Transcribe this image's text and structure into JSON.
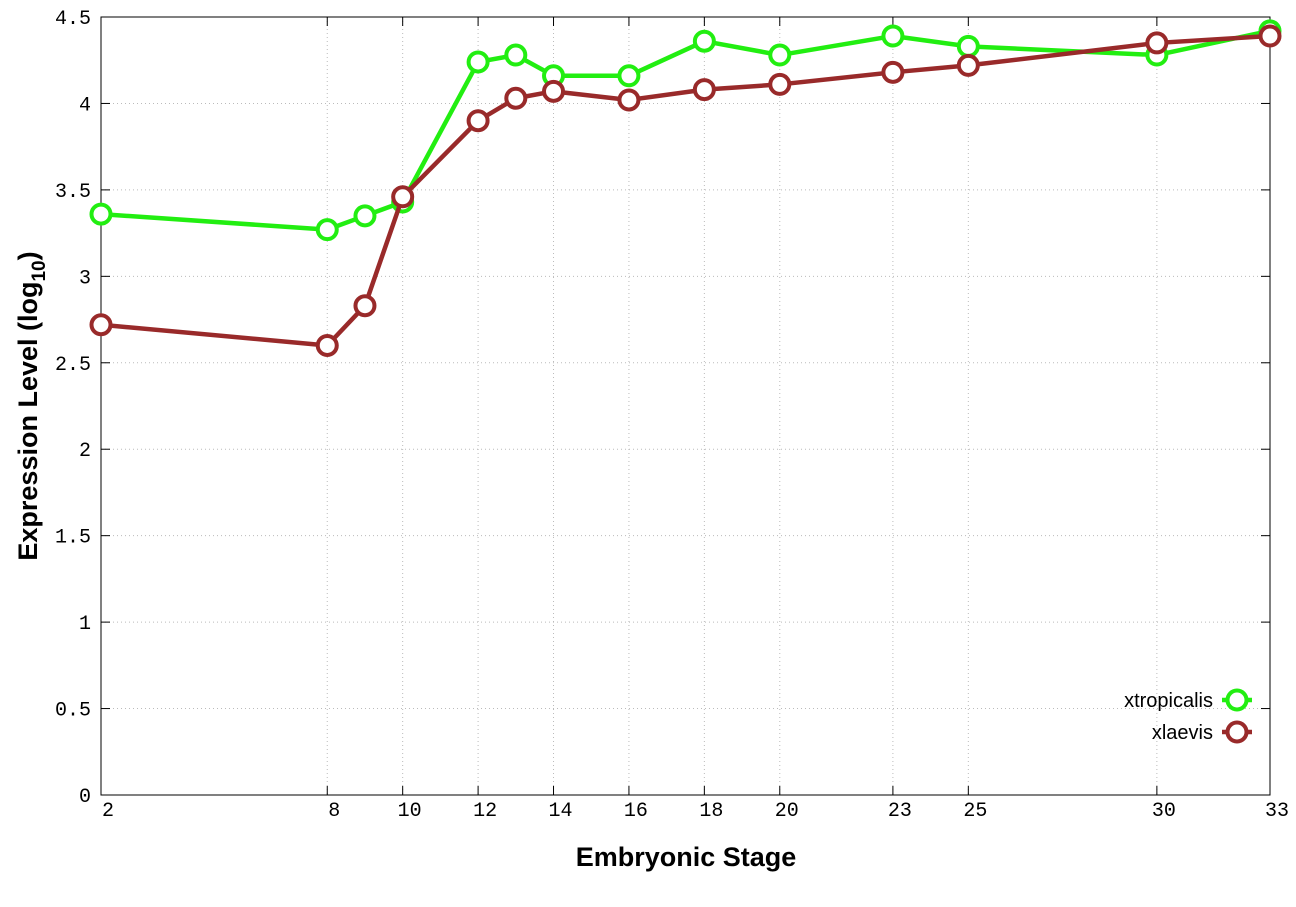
{
  "chart_data": {
    "type": "line",
    "xlabel": "Embryonic Stage",
    "ylabel": [
      "Expression Level (log",
      "10",
      ")"
    ],
    "x": [
      2,
      8,
      9,
      10,
      12,
      13,
      14,
      16,
      18,
      20,
      23,
      25,
      30,
      33
    ],
    "series": [
      {
        "name": "xtropicalis",
        "color": "#22ee11",
        "values": [
          3.36,
          3.27,
          3.35,
          3.43,
          4.24,
          4.28,
          4.16,
          4.16,
          4.36,
          4.28,
          4.39,
          4.33,
          4.28,
          4.42
        ]
      },
      {
        "name": "xlaevis",
        "color": "#992a2a",
        "values": [
          2.72,
          2.6,
          2.83,
          3.46,
          3.9,
          4.03,
          4.07,
          4.02,
          4.08,
          4.11,
          4.18,
          4.22,
          4.35,
          4.39
        ]
      }
    ],
    "xlim": [
      2,
      33
    ],
    "xticks": [
      2,
      8,
      10,
      12,
      14,
      16,
      18,
      20,
      23,
      25,
      30,
      33
    ],
    "ylim": [
      0,
      4.5
    ],
    "yticks": [
      0,
      0.5,
      1,
      1.5,
      2,
      2.5,
      3,
      3.5,
      4,
      4.5
    ],
    "grid": true,
    "legend_position": "bottom right"
  }
}
